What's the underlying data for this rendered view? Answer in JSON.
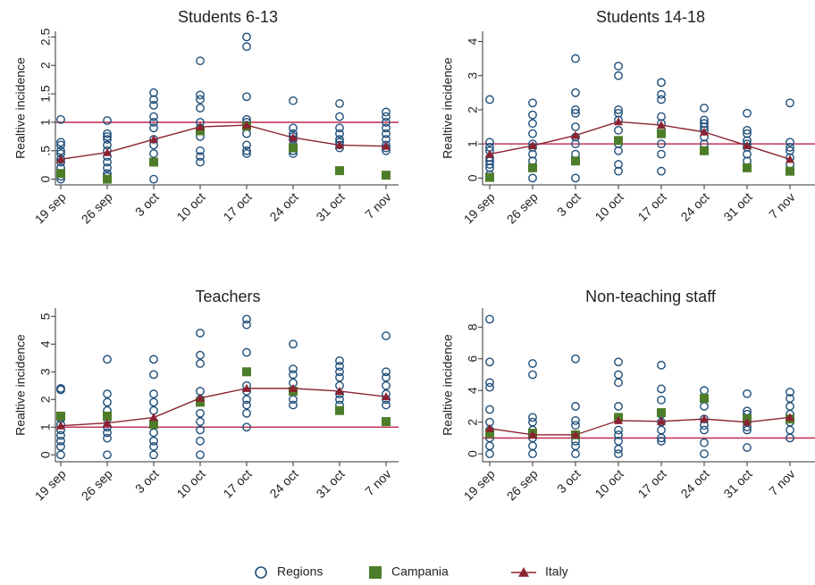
{
  "chart_data": [
    {
      "type": "scatter",
      "title": "Students 6-13",
      "y_label": "Realtive incidence",
      "categories": [
        "19 sep",
        "26 sep",
        "3 oct",
        "10 oct",
        "17 oct",
        "24 oct",
        "31 oct",
        "7 nov"
      ],
      "ylim": [
        -0.1,
        2.6
      ],
      "yticks": [
        0,
        {
          "value": 0.5,
          "label": ".5"
        },
        1,
        1.5,
        2,
        2.5
      ],
      "reference_line": 1,
      "reference_color": "#c0395a",
      "series": [
        {
          "name": "Regions",
          "color": "#1f4e79",
          "marker": "circle",
          "values": [
            [
              1.05,
              0.65,
              0.6,
              0.5,
              0.45,
              0.35,
              0.3,
              0.2,
              0.1,
              0.05,
              0.0
            ],
            [
              1.03,
              0.8,
              0.75,
              0.7,
              0.6,
              0.5,
              0.4,
              0.3,
              0.2,
              0.1,
              0.05,
              0.0
            ],
            [
              1.52,
              1.4,
              1.3,
              1.1,
              1.0,
              0.9,
              0.7,
              0.6,
              0.45,
              0.3,
              0.0
            ],
            [
              2.08,
              1.48,
              1.4,
              1.25,
              1.0,
              0.9,
              0.75,
              0.5,
              0.4,
              0.3
            ],
            [
              2.5,
              2.33,
              1.45,
              1.05,
              1.0,
              0.95,
              0.8,
              0.6,
              0.5,
              0.45
            ],
            [
              1.38,
              0.9,
              0.8,
              0.75,
              0.7,
              0.6,
              0.5,
              0.45
            ],
            [
              1.33,
              1.1,
              0.9,
              0.8,
              0.7,
              0.65,
              0.6,
              0.55
            ],
            [
              1.18,
              1.1,
              1.0,
              0.9,
              0.8,
              0.7,
              0.6,
              0.55,
              0.5
            ]
          ]
        },
        {
          "name": "Campania",
          "color": "#4e7d2a",
          "marker": "square",
          "values": [
            0.1,
            0.0,
            0.3,
            0.85,
            0.93,
            0.55,
            0.15,
            0.07
          ]
        },
        {
          "name": "Italy",
          "color": "#8b2332",
          "marker": "triangle-line",
          "values": [
            0.35,
            0.47,
            0.7,
            0.92,
            0.95,
            0.73,
            0.6,
            0.58
          ]
        }
      ]
    },
    {
      "type": "scatter",
      "title": "Students 14-18",
      "y_label": "Realtive incidence",
      "categories": [
        "19 sep",
        "26 sep",
        "3 oct",
        "10 oct",
        "17 oct",
        "24 oct",
        "31 oct",
        "7 nov"
      ],
      "ylim": [
        -0.2,
        4.3
      ],
      "yticks": [
        0,
        1,
        2,
        3,
        4
      ],
      "reference_line": 1,
      "reference_color": "#c0395a",
      "series": [
        {
          "name": "Regions",
          "color": "#1f4e79",
          "marker": "circle",
          "values": [
            [
              2.3,
              1.05,
              0.9,
              0.8,
              0.6,
              0.5,
              0.4,
              0.3,
              0.1
            ],
            [
              2.2,
              1.85,
              1.6,
              1.3,
              1.0,
              0.9,
              0.7,
              0.5,
              0.3,
              0.0
            ],
            [
              3.5,
              2.5,
              2.0,
              1.9,
              1.5,
              1.2,
              1.0,
              0.7,
              0.5,
              0.0
            ],
            [
              3.28,
              3.0,
              2.0,
              1.9,
              1.7,
              1.4,
              1.0,
              0.8,
              0.4,
              0.2
            ],
            [
              2.8,
              2.45,
              2.3,
              1.8,
              1.6,
              1.4,
              1.0,
              0.7,
              0.2
            ],
            [
              2.05,
              1.7,
              1.6,
              1.5,
              1.4,
              1.2,
              1.0,
              0.8
            ],
            [
              1.9,
              1.4,
              1.3,
              1.1,
              1.0,
              0.9,
              0.7,
              0.5
            ],
            [
              2.2,
              1.05,
              0.9,
              0.8,
              0.6,
              0.4
            ]
          ]
        },
        {
          "name": "Campania",
          "color": "#4e7d2a",
          "marker": "square",
          "values": [
            0.02,
            0.3,
            0.5,
            1.1,
            1.3,
            0.8,
            0.3,
            0.2
          ]
        },
        {
          "name": "Italy",
          "color": "#8b2332",
          "marker": "triangle-line",
          "values": [
            0.7,
            0.95,
            1.25,
            1.65,
            1.55,
            1.35,
            0.95,
            0.55
          ]
        }
      ]
    },
    {
      "type": "scatter",
      "title": "Teachers",
      "y_label": "Realtive incidence",
      "categories": [
        "19 sep",
        "26 sep",
        "3 oct",
        "10 oct",
        "17 oct",
        "24 oct",
        "31 oct",
        "7 nov"
      ],
      "ylim": [
        -0.25,
        5.3
      ],
      "yticks": [
        0,
        1,
        2,
        3,
        4,
        5
      ],
      "reference_line": 1,
      "reference_color": "#c0395a",
      "series": [
        {
          "name": "Regions",
          "color": "#1f4e79",
          "marker": "circle",
          "values": [
            [
              2.4,
              2.35,
              1.3,
              1.1,
              0.9,
              0.7,
              0.5,
              0.3,
              0.0
            ],
            [
              3.45,
              2.2,
              1.9,
              1.6,
              1.3,
              1.0,
              0.8,
              0.6,
              0.0
            ],
            [
              3.45,
              2.9,
              2.2,
              1.9,
              1.6,
              1.2,
              0.8,
              0.5,
              0.3,
              0.0
            ],
            [
              4.4,
              3.6,
              3.3,
              2.3,
              2.0,
              1.5,
              1.2,
              0.9,
              0.5,
              0.0
            ],
            [
              4.9,
              4.7,
              3.7,
              2.5,
              2.3,
              2.0,
              1.8,
              1.5,
              1.0
            ],
            [
              4.0,
              3.1,
              2.9,
              2.6,
              2.3,
              2.0,
              1.8
            ],
            [
              3.4,
              3.2,
              3.0,
              2.8,
              2.5,
              2.2,
              2.0,
              1.8
            ],
            [
              4.3,
              3.0,
              2.8,
              2.5,
              2.2,
              2.0,
              1.8
            ]
          ]
        },
        {
          "name": "Campania",
          "color": "#4e7d2a",
          "marker": "square",
          "values": [
            1.4,
            1.4,
            1.1,
            1.9,
            3.0,
            2.3,
            1.6,
            1.2
          ]
        },
        {
          "name": "Italy",
          "color": "#8b2332",
          "marker": "triangle-line",
          "values": [
            1.05,
            1.15,
            1.35,
            2.05,
            2.4,
            2.4,
            2.3,
            2.1
          ]
        }
      ]
    },
    {
      "type": "scatter",
      "title": "Non-teaching staff",
      "y_label": "Realtive incidence",
      "categories": [
        "19 sep",
        "26 sep",
        "3 oct",
        "10 oct",
        "17 oct",
        "24 oct",
        "31 oct",
        "7 nov"
      ],
      "ylim": [
        -0.5,
        9.2
      ],
      "yticks": [
        0,
        2,
        4,
        6,
        8
      ],
      "reference_line": 1,
      "reference_color": "#c0395a",
      "series": [
        {
          "name": "Regions",
          "color": "#1f4e79",
          "marker": "circle",
          "values": [
            [
              8.5,
              5.8,
              4.5,
              4.2,
              2.8,
              2.0,
              1.5,
              1.0,
              0.5,
              0.0
            ],
            [
              5.7,
              5.0,
              2.3,
              2.0,
              1.5,
              1.0,
              0.5,
              0.0
            ],
            [
              6.0,
              3.0,
              2.1,
              1.8,
              1.2,
              0.8,
              0.5,
              0.0
            ],
            [
              5.8,
              5.0,
              4.5,
              3.0,
              2.3,
              1.5,
              1.2,
              0.8,
              0.3,
              0.0
            ],
            [
              5.6,
              4.1,
              3.4,
              2.5,
              2.0,
              1.5,
              1.0,
              0.8
            ],
            [
              4.0,
              3.5,
              3.0,
              2.2,
              1.8,
              1.5,
              0.7,
              0.0
            ],
            [
              3.8,
              2.7,
              2.5,
              2.0,
              1.7,
              1.5,
              0.4
            ],
            [
              3.9,
              3.5,
              3.0,
              2.5,
              2.0,
              1.5,
              1.0
            ]
          ]
        },
        {
          "name": "Campania",
          "color": "#4e7d2a",
          "marker": "square",
          "values": [
            1.3,
            1.3,
            1.2,
            2.3,
            2.6,
            3.5,
            2.2,
            2.2
          ]
        },
        {
          "name": "Italy",
          "color": "#8b2332",
          "marker": "triangle-line",
          "values": [
            1.6,
            1.2,
            1.2,
            2.1,
            2.05,
            2.2,
            2.0,
            2.3
          ]
        }
      ]
    }
  ]
}
